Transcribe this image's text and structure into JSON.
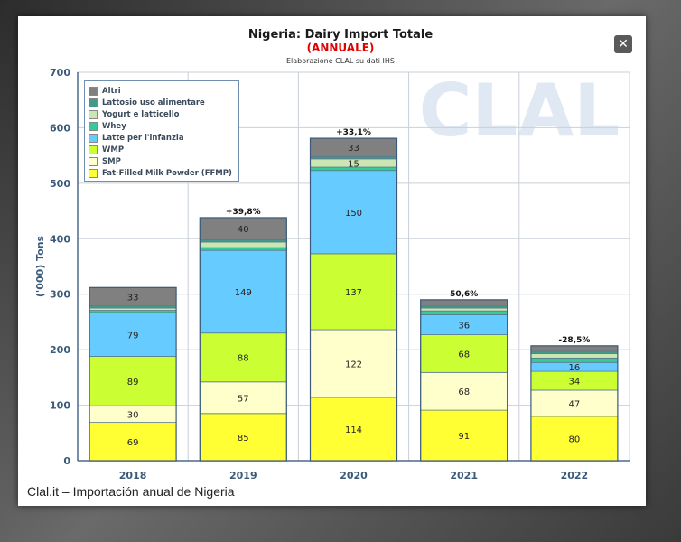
{
  "window": {
    "close_label": "✕",
    "caption": "Clal.it – Importación anual de Nigeria"
  },
  "chart_data": {
    "type": "bar",
    "stacked": true,
    "title": "Nigeria: Dairy Import Totale",
    "subtitle": "(ANNUALE)",
    "source": "Elaborazione CLAL su dati IHS",
    "watermark": "CLAL",
    "ylabel": "('000) Tons",
    "xlabel": "",
    "ylim": [
      0,
      700
    ],
    "yticks": [
      0,
      100,
      200,
      300,
      400,
      500,
      600,
      700
    ],
    "grid": true,
    "legend_position": "top-left",
    "categories": [
      "2018",
      "2019",
      "2020",
      "2021",
      "2022"
    ],
    "series": [
      {
        "name": "Fat-Filled Milk Powder (FFMP)",
        "color": "#ffff33",
        "values": [
          69,
          85,
          114,
          91,
          80
        ],
        "labels": [
          "69",
          "85",
          "114",
          "91",
          "80"
        ]
      },
      {
        "name": "SMP",
        "color": "#ffffcc",
        "values": [
          30,
          57,
          122,
          68,
          47
        ],
        "labels": [
          "30",
          "57",
          "122",
          "68",
          "47"
        ]
      },
      {
        "name": "WMP",
        "color": "#ccff33",
        "values": [
          89,
          88,
          137,
          68,
          34
        ],
        "labels": [
          "89",
          "88",
          "137",
          "68",
          "34"
        ]
      },
      {
        "name": "Latte per l'infanzia",
        "color": "#66ccff",
        "values": [
          79,
          149,
          150,
          36,
          16
        ],
        "labels": [
          "79",
          "149",
          "150",
          "36",
          "16"
        ]
      },
      {
        "name": "Whey",
        "color": "#33cc99",
        "values": [
          4,
          5,
          6,
          7,
          8
        ],
        "labels": [
          "",
          "",
          "",
          "",
          ""
        ]
      },
      {
        "name": "Yogurt e latticello",
        "color": "#cce6b3",
        "values": [
          4,
          10,
          15,
          5,
          8
        ],
        "labels": [
          "",
          "",
          "15",
          "",
          ""
        ]
      },
      {
        "name": "Lattosio uso alimentare",
        "color": "#44998a",
        "values": [
          4,
          4,
          4,
          4,
          4
        ],
        "labels": [
          "",
          "",
          "",
          "",
          ""
        ]
      },
      {
        "name": "Altri",
        "color": "#808080",
        "values": [
          33,
          40,
          33,
          11,
          10
        ],
        "labels": [
          "33",
          "40",
          "33",
          "",
          ""
        ]
      }
    ],
    "totals_annotations": [
      "",
      "+39,8%",
      "+33,1%",
      "50,6%",
      "-28,5%"
    ]
  }
}
